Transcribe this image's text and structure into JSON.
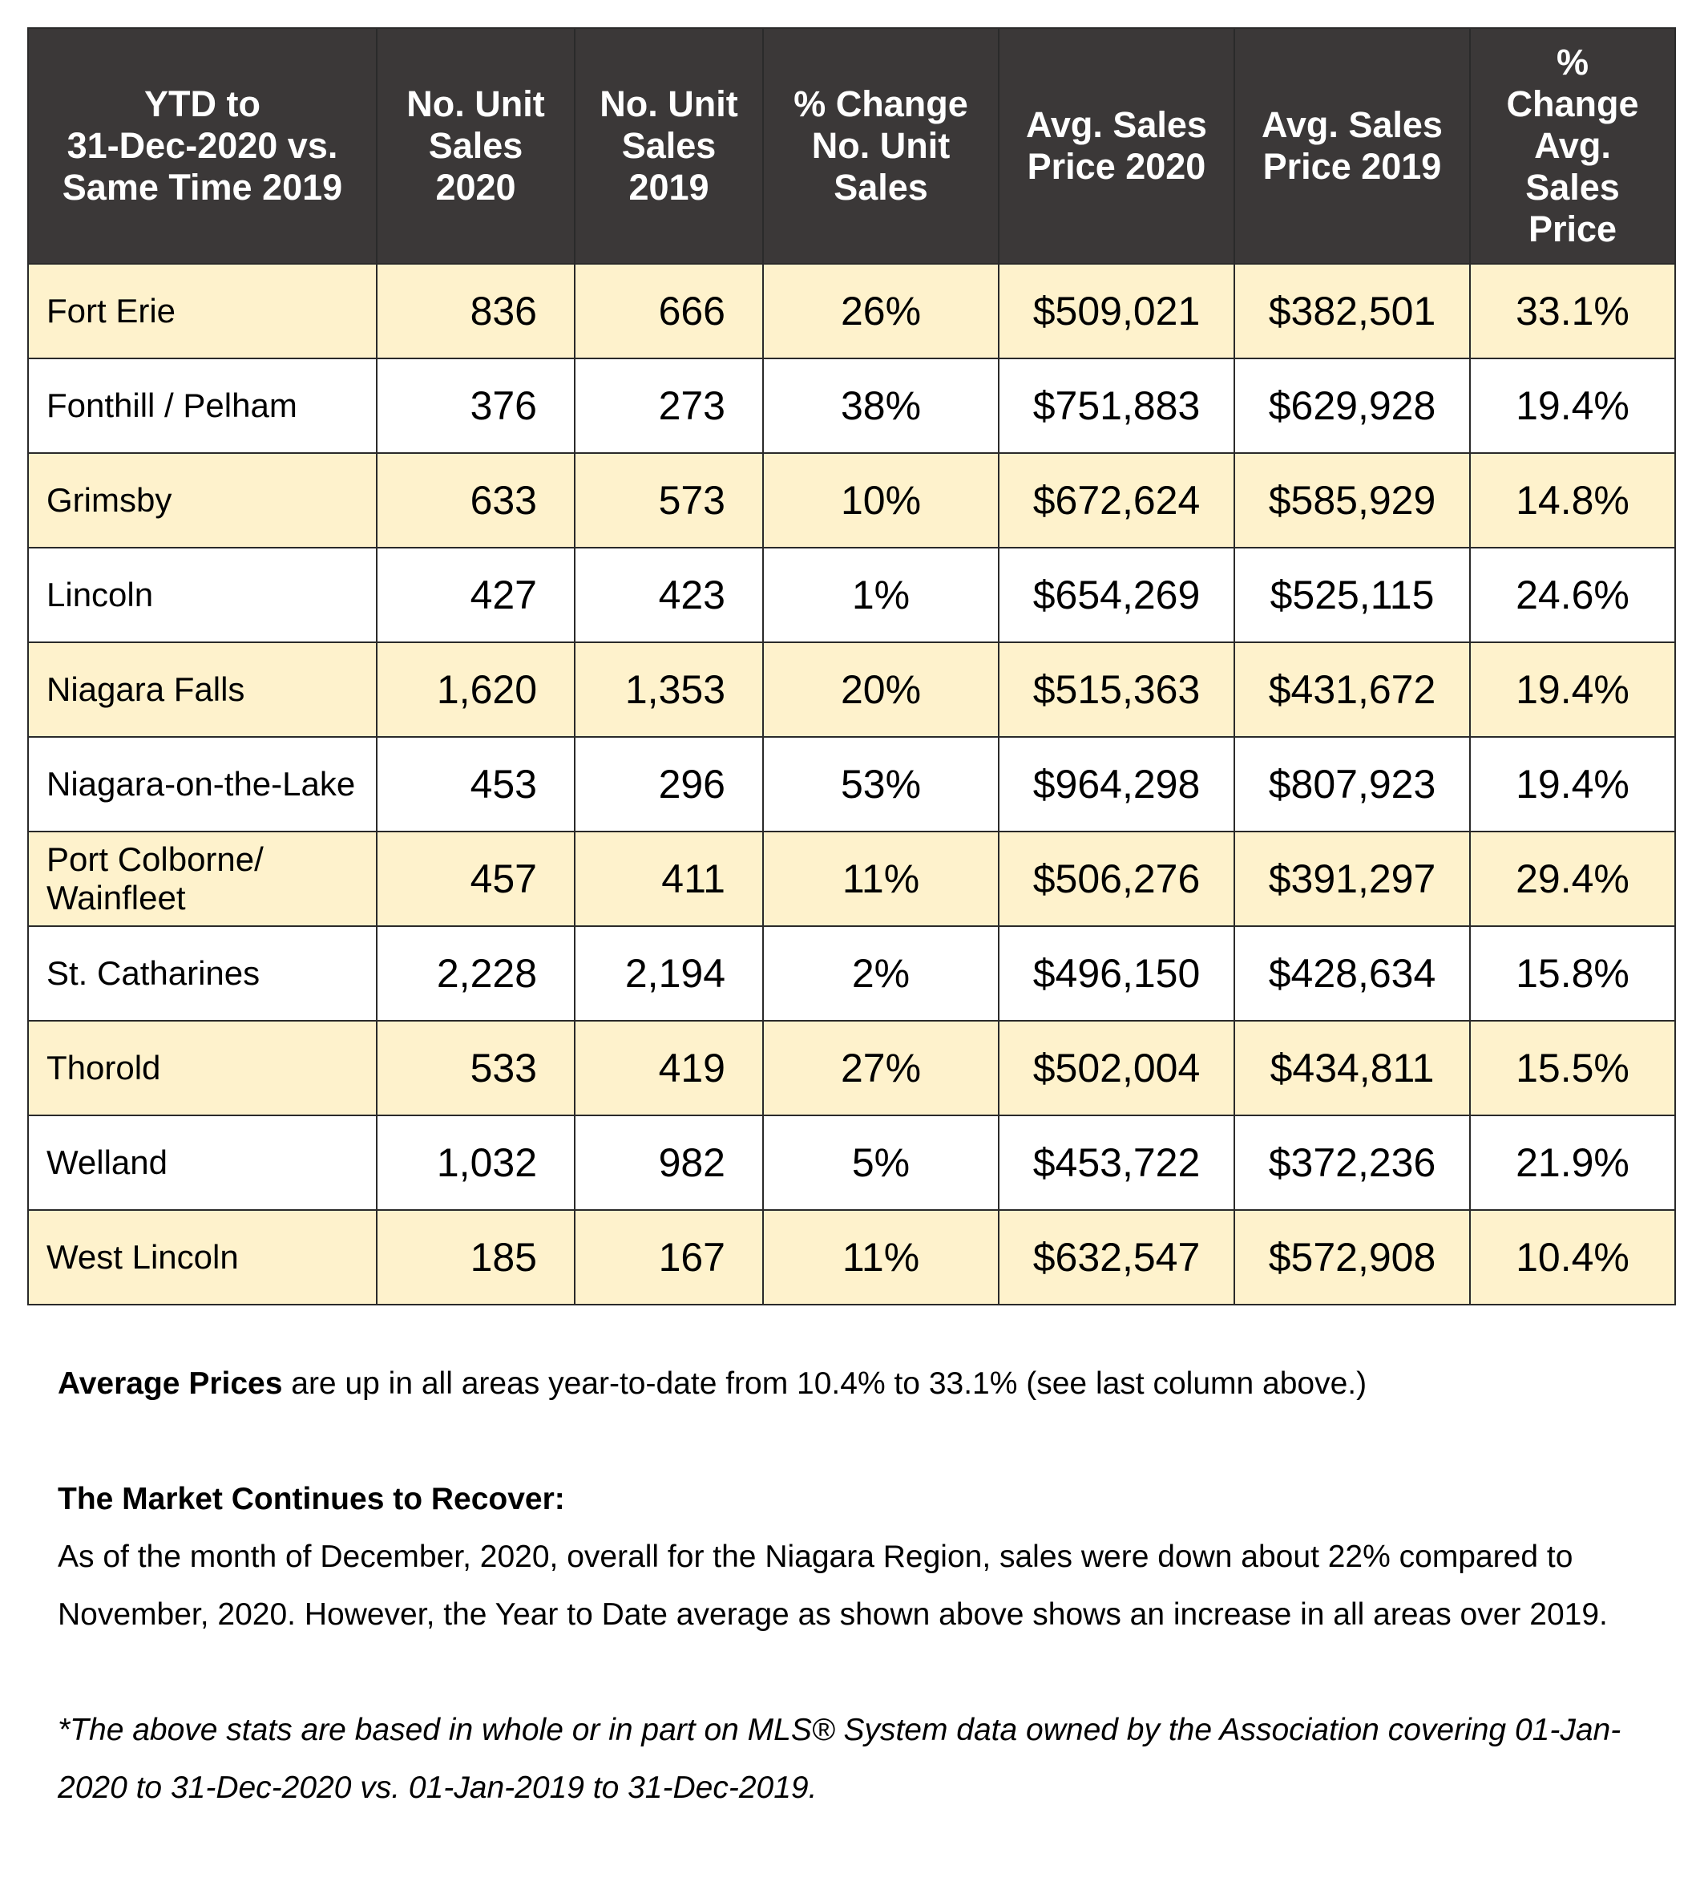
{
  "table": {
    "headers": [
      "YTD to\n31-Dec-2020 vs.\nSame Time 2019",
      "No. Unit\nSales\n2020",
      "No. Unit\nSales\n2019",
      "% Change\nNo. Unit\nSales",
      "Avg. Sales\nPrice 2020",
      "Avg. Sales\nPrice 2019",
      "%\nChange\nAvg.\nSales\nPrice"
    ],
    "rows": [
      {
        "area": "Fort Erie",
        "units_2020": "836",
        "units_2019": "666",
        "pct_units": "26%",
        "avg_2020": "$509,021",
        "avg_2019": "$382,501",
        "pct_avg": "33.1%"
      },
      {
        "area": "Fonthill / Pelham",
        "units_2020": "376",
        "units_2019": "273",
        "pct_units": "38%",
        "avg_2020": "$751,883",
        "avg_2019": "$629,928",
        "pct_avg": "19.4%"
      },
      {
        "area": "Grimsby",
        "units_2020": "633",
        "units_2019": "573",
        "pct_units": "10%",
        "avg_2020": "$672,624",
        "avg_2019": "$585,929",
        "pct_avg": "14.8%"
      },
      {
        "area": "Lincoln",
        "units_2020": "427",
        "units_2019": "423",
        "pct_units": "1%",
        "avg_2020": "$654,269",
        "avg_2019": "$525,115",
        "pct_avg": "24.6%"
      },
      {
        "area": "Niagara Falls",
        "units_2020": "1,620",
        "units_2019": "1,353",
        "pct_units": "20%",
        "avg_2020": "$515,363",
        "avg_2019": "$431,672",
        "pct_avg": "19.4%"
      },
      {
        "area": "Niagara-on-the-Lake",
        "units_2020": "453",
        "units_2019": "296",
        "pct_units": "53%",
        "avg_2020": "$964,298",
        "avg_2019": "$807,923",
        "pct_avg": "19.4%"
      },
      {
        "area": "Port Colborne/\nWainfleet",
        "units_2020": "457",
        "units_2019": "411",
        "pct_units": "11%",
        "avg_2020": "$506,276",
        "avg_2019": "$391,297",
        "pct_avg": "29.4%"
      },
      {
        "area": "St.  Catharines",
        "units_2020": "2,228",
        "units_2019": "2,194",
        "pct_units": "2%",
        "avg_2020": "$496,150",
        "avg_2019": "$428,634",
        "pct_avg": "15.8%"
      },
      {
        "area": "Thorold",
        "units_2020": "533",
        "units_2019": "419",
        "pct_units": "27%",
        "avg_2020": "$502,004",
        "avg_2019": "$434,811",
        "pct_avg": "15.5%"
      },
      {
        "area": "Welland",
        "units_2020": "1,032",
        "units_2019": "982",
        "pct_units": "5%",
        "avg_2020": "$453,722",
        "avg_2019": "$372,236",
        "pct_avg": "21.9%"
      },
      {
        "area": "West Lincoln",
        "units_2020": "185",
        "units_2019": "167",
        "pct_units": "11%",
        "avg_2020": "$632,547",
        "avg_2019": "$572,908",
        "pct_avg": "10.4%"
      }
    ]
  },
  "notes": {
    "average_prices_bold": "Average Prices",
    "average_prices_text": " are up in all areas year-to-date from 10.4% to 33.1% (see last column above.)",
    "market_heading": "The Market Continues to Recover:",
    "market_text": "As of the month of December, 2020, overall for the Niagara Region, sales were down about 22% compared to November, 2020.  However, the Year to Date average as shown above shows an increase in all areas over 2019.",
    "disclaimer": "*The above stats are based in whole or in part on MLS® System data owned by the Association covering 01-Jan-2020 to 31-Dec-2020 vs. 01-Jan-2019 to 31-Dec-2019."
  },
  "colors": {
    "header_bg": "#3b3838",
    "shaded_row_bg": "#fef2cc",
    "plain_row_bg": "#ffffff"
  }
}
